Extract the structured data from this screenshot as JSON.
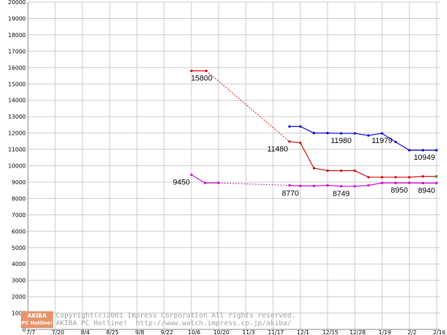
{
  "chart_data": {
    "type": "line",
    "x_ticks": [
      "7/7",
      "7/20",
      "8/4",
      "8/25",
      "9/8",
      "9/22",
      "10/6",
      "10/20",
      "11/3",
      "11/17",
      "12/1",
      "12/15",
      "12/28",
      "1/19",
      "2/2",
      "2/16"
    ],
    "ylim": [
      0,
      20000
    ],
    "y_ticks": [
      0,
      1000,
      2000,
      3000,
      4000,
      5000,
      6000,
      7000,
      8000,
      9000,
      10000,
      11000,
      12000,
      13000,
      14000,
      15000,
      16000,
      17000,
      18000,
      19000,
      20000
    ],
    "grid": true,
    "series": [
      {
        "color": "#cc0000",
        "segments": [
          {
            "style": "solid",
            "points": [
              [
                6.0,
                15800
              ],
              [
                6.55,
                15800
              ]
            ]
          },
          {
            "style": "dashed",
            "points": [
              [
                6.55,
                15800
              ],
              [
                9.6,
                11480
              ]
            ]
          },
          {
            "style": "solid",
            "points": [
              [
                9.6,
                11480
              ],
              [
                10.0,
                11400
              ],
              [
                10.5,
                9850
              ],
              [
                11.0,
                9700
              ],
              [
                11.5,
                9700
              ],
              [
                12.0,
                9700
              ],
              [
                12.5,
                9300
              ],
              [
                13.0,
                9300
              ],
              [
                13.5,
                9300
              ],
              [
                14.0,
                9300
              ],
              [
                14.5,
                9350
              ],
              [
                15.0,
                9350
              ]
            ]
          }
        ],
        "end_marker_color": "#00aa00"
      },
      {
        "color": "#0000cc",
        "segments": [
          {
            "style": "solid",
            "points": [
              [
                9.6,
                12400
              ],
              [
                10.0,
                12400
              ],
              [
                10.5,
                12000
              ],
              [
                11.0,
                12000
              ],
              [
                11.5,
                11980
              ],
              [
                12.0,
                11980
              ],
              [
                12.5,
                11850
              ],
              [
                13.0,
                11979
              ],
              [
                13.5,
                11450
              ],
              [
                14.0,
                10949
              ],
              [
                14.5,
                10949
              ],
              [
                15.0,
                10949
              ]
            ]
          }
        ]
      },
      {
        "color": "#cc00cc",
        "segments": [
          {
            "style": "solid",
            "points": [
              [
                6.0,
                9450
              ],
              [
                6.5,
                8950
              ],
              [
                7.0,
                8950
              ]
            ]
          },
          {
            "style": "dashed",
            "points": [
              [
                7.0,
                8950
              ],
              [
                9.6,
                8800
              ]
            ]
          },
          {
            "style": "solid",
            "points": [
              [
                9.6,
                8800
              ],
              [
                10.0,
                8770
              ],
              [
                10.5,
                8770
              ],
              [
                11.0,
                8800
              ],
              [
                11.5,
                8749
              ],
              [
                12.0,
                8749
              ],
              [
                12.5,
                8800
              ],
              [
                13.0,
                8950
              ],
              [
                13.5,
                8950
              ],
              [
                14.0,
                8950
              ],
              [
                14.5,
                8940
              ],
              [
                15.0,
                8940
              ]
            ]
          }
        ]
      }
    ],
    "data_labels": [
      {
        "text": "15800",
        "x": 6.55,
        "y": 15800,
        "anchor": "above-right"
      },
      {
        "text": "11480",
        "x": 9.6,
        "y": 11480,
        "anchor": "below-left"
      },
      {
        "text": "11980",
        "x": 11.5,
        "y": 11980,
        "anchor": "below"
      },
      {
        "text": "11979",
        "x": 13.0,
        "y": 11979,
        "anchor": "below"
      },
      {
        "text": "10949",
        "x": 15.0,
        "y": 10949,
        "anchor": "below-left"
      },
      {
        "text": "9450",
        "x": 6.0,
        "y": 9450,
        "anchor": "below-left"
      },
      {
        "text": "8770",
        "x": 10.0,
        "y": 8770,
        "anchor": "below-left"
      },
      {
        "text": "8749",
        "x": 11.5,
        "y": 8749,
        "anchor": "below"
      },
      {
        "text": "8950",
        "x": 14.0,
        "y": 8950,
        "anchor": "below-left"
      },
      {
        "text": "8940",
        "x": 15.0,
        "y": 8940,
        "anchor": "below-left"
      }
    ]
  },
  "watermark": {
    "badge_top": "AKIBA",
    "badge_bottom": "PC Hotline!",
    "line1": "Copyright(c)2001 Impress Corporation All rights reserved.",
    "line2": "AKIBA PC Hotline!  http://www.watch.impress.co.jp/akiba/"
  }
}
